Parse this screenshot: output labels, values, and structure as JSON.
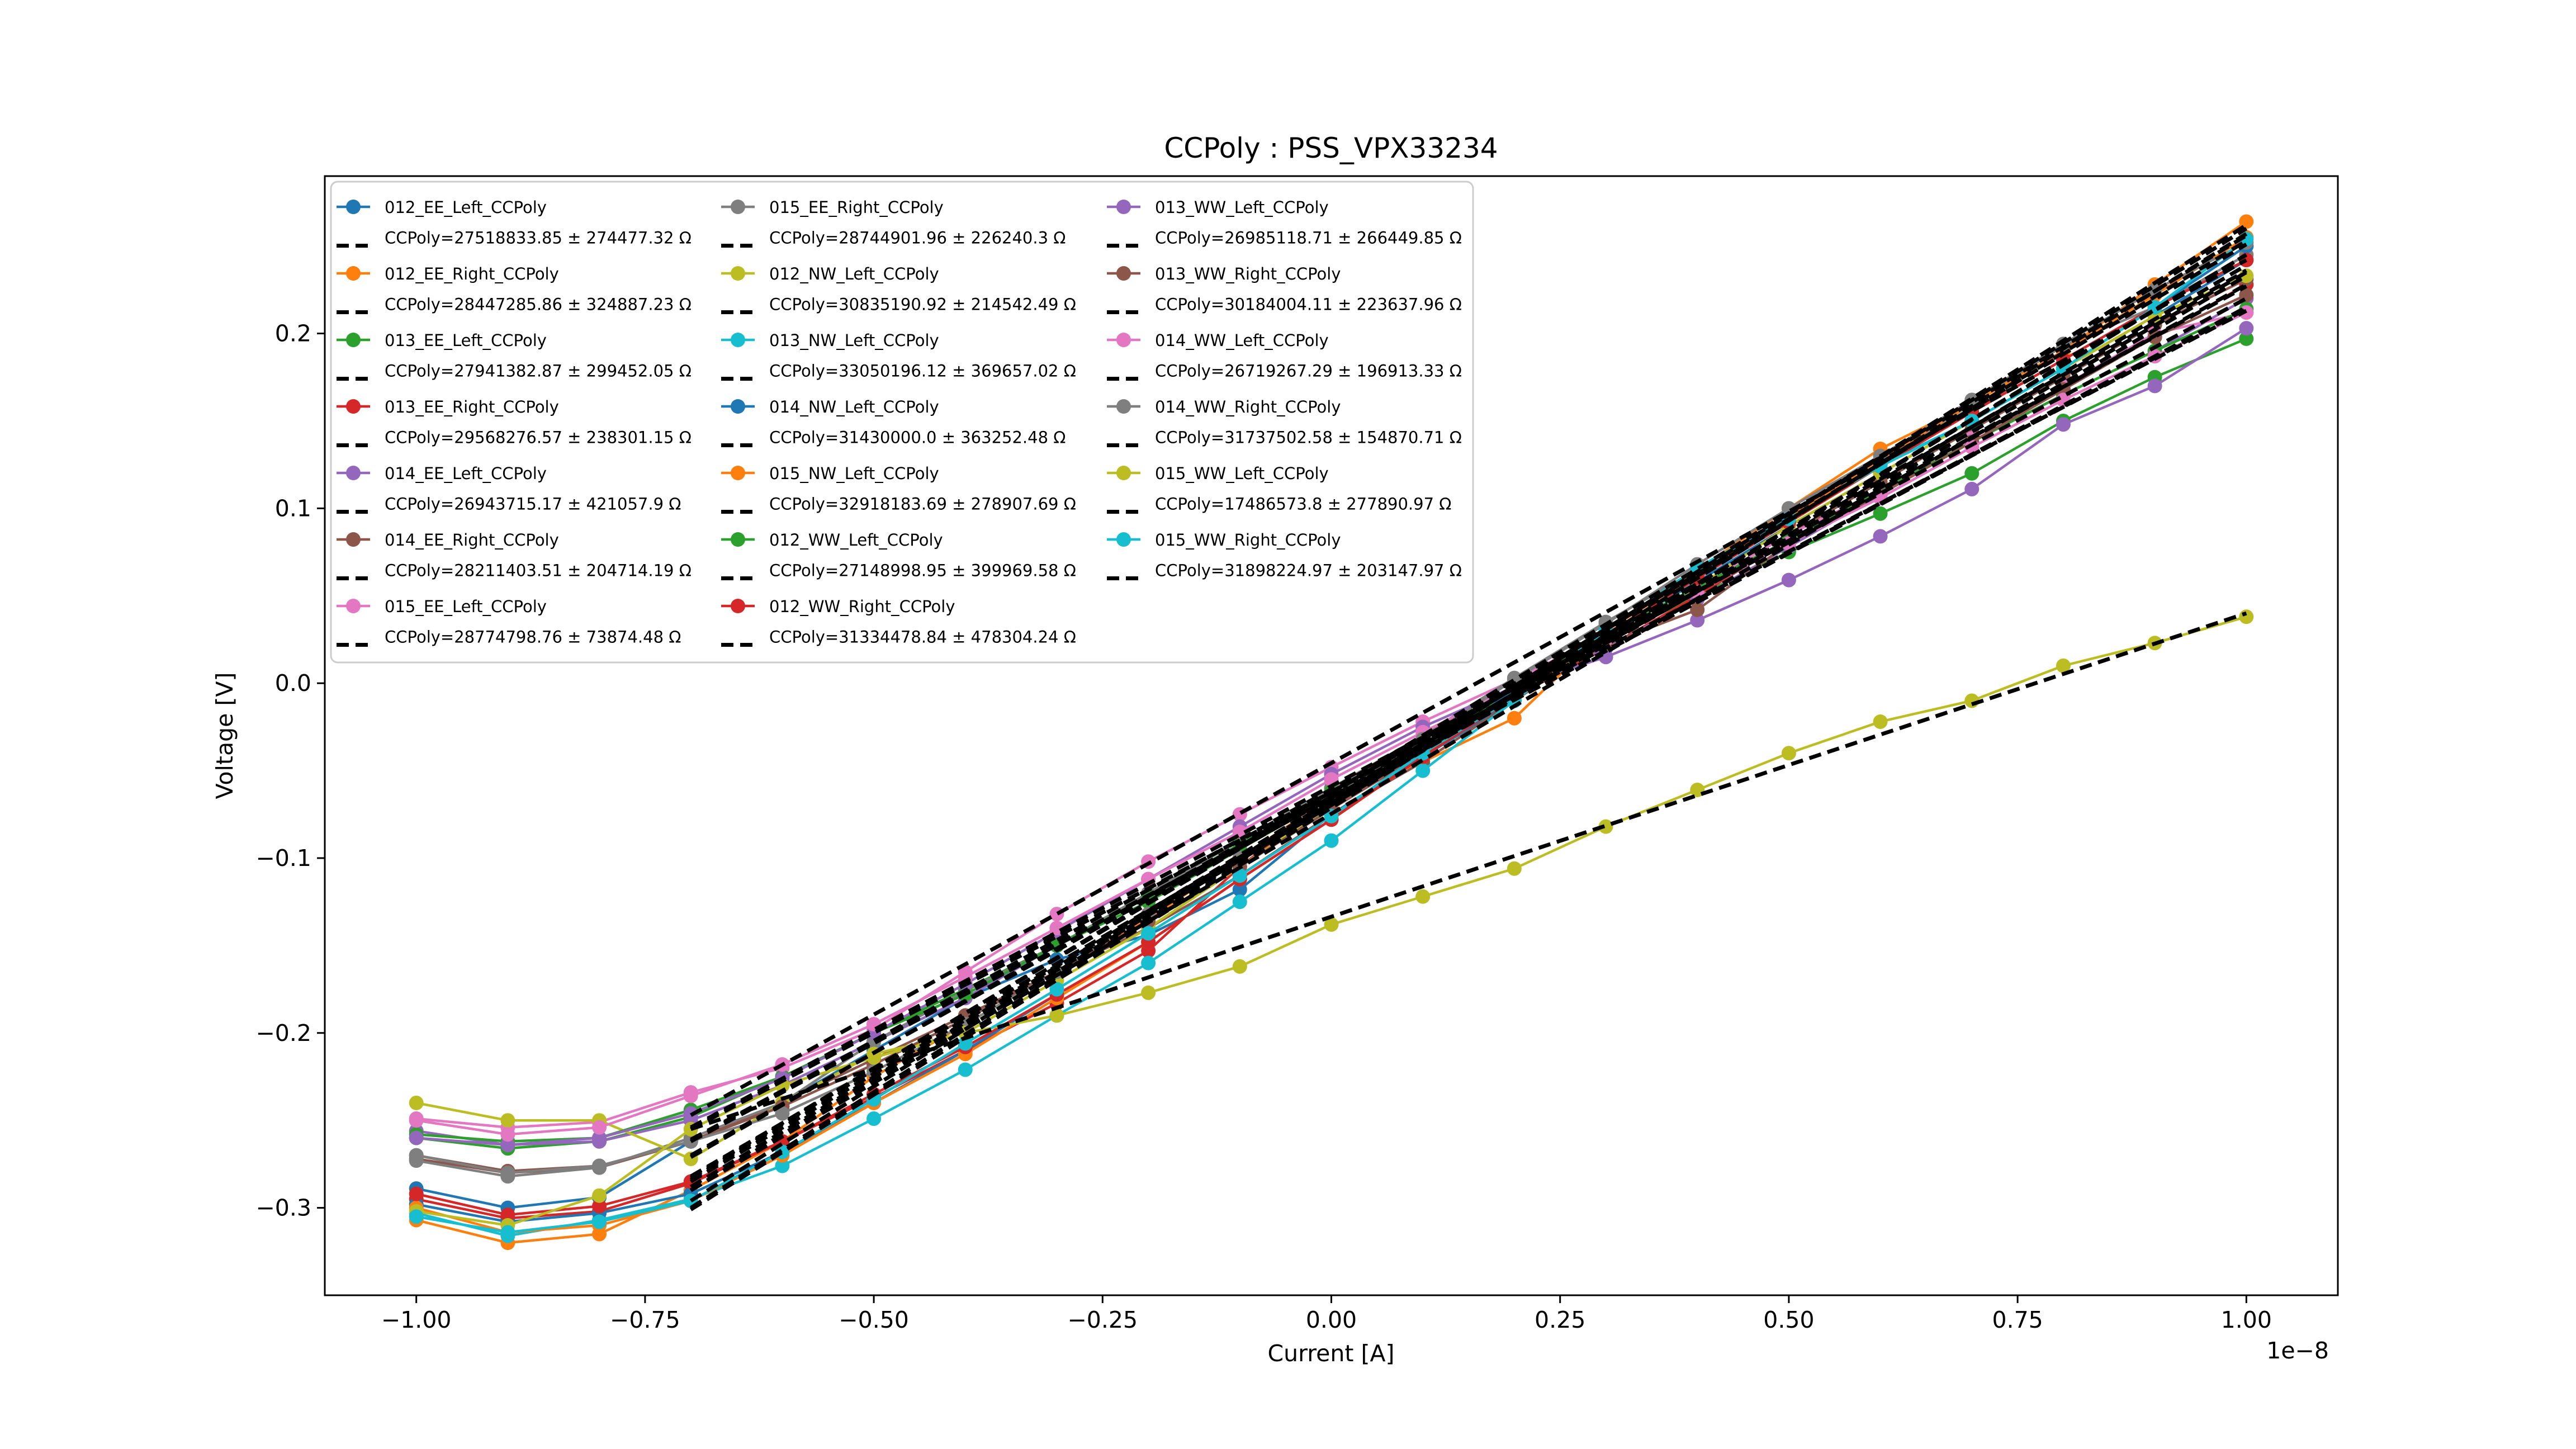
{
  "chart_data": {
    "type": "line",
    "title": "CCPoly : PSS_VPX33234",
    "xlabel": "Current [A]",
    "ylabel": "Voltage [V]",
    "x_offset_label": "1e−8",
    "xlim": [
      -1.1,
      1.1
    ],
    "ylim": [
      -0.35,
      0.29
    ],
    "x_ticks": [
      -1.0,
      -0.75,
      -0.5,
      -0.25,
      0.0,
      0.25,
      0.5,
      0.75,
      1.0
    ],
    "x_tick_labels": [
      "−1.00",
      "−0.75",
      "−0.50",
      "−0.25",
      "0.00",
      "0.25",
      "0.50",
      "0.75",
      "1.00"
    ],
    "y_ticks": [
      -0.3,
      -0.2,
      -0.1,
      0.0,
      0.1,
      0.2
    ],
    "y_tick_labels": [
      "−0.3",
      "−0.2",
      "−0.1",
      "0.0",
      "0.1",
      "0.2"
    ],
    "grid": false,
    "legend_position": "top-left",
    "x": [
      -1.0,
      -0.9,
      -0.8,
      -0.7,
      -0.6,
      -0.5,
      -0.4,
      -0.3,
      -0.2,
      -0.1,
      0.0,
      0.1,
      0.2,
      0.3,
      0.4,
      0.5,
      0.6,
      0.7,
      0.8,
      0.9,
      1.0
    ],
    "fit_x_range": [
      -0.7,
      1.0
    ],
    "series": [
      {
        "name": "012_EE_Left_CCPoly",
        "color": "#1f77b4",
        "fit_label": "CCPoly=27518833.85 ± 274477.32 Ω",
        "fit_end": [
          -0.283,
          0.251
        ],
        "values": [
          -0.289,
          -0.3,
          -0.294,
          -0.262,
          -0.24,
          -0.21,
          -0.18,
          -0.158,
          -0.144,
          -0.118,
          -0.075,
          -0.042,
          -0.01,
          0.028,
          0.058,
          0.09,
          0.12,
          0.15,
          0.18,
          0.21,
          0.242
        ]
      },
      {
        "name": "012_EE_Right_CCPoly",
        "color": "#ff7f0e",
        "fit_label": "CCPoly=28447285.86 ± 324887.23 Ω",
        "fit_end": [
          -0.301,
          0.257
        ],
        "values": [
          -0.307,
          -0.32,
          -0.315,
          -0.29,
          -0.262,
          -0.225,
          -0.195,
          -0.165,
          -0.135,
          -0.1,
          -0.065,
          -0.045,
          -0.02,
          0.03,
          0.065,
          0.1,
          0.134,
          0.16,
          0.19,
          0.228,
          0.264
        ]
      },
      {
        "name": "013_EE_Left_CCPoly",
        "color": "#2ca02c",
        "fit_label": "CCPoly=27941382.87 ± 299452.05 Ω",
        "fit_end": [
          -0.262,
          0.215
        ],
        "values": [
          -0.26,
          -0.266,
          -0.262,
          -0.248,
          -0.225,
          -0.2,
          -0.175,
          -0.15,
          -0.125,
          -0.095,
          -0.065,
          -0.035,
          -0.005,
          0.025,
          0.05,
          0.075,
          0.097,
          0.12,
          0.15,
          0.175,
          0.197
        ]
      },
      {
        "name": "013_EE_Right_CCPoly",
        "color": "#d62728",
        "fit_label": "CCPoly=29568276.57 ± 238301.15 Ω",
        "fit_end": [
          -0.29,
          0.233
        ],
        "values": [
          -0.295,
          -0.306,
          -0.302,
          -0.286,
          -0.262,
          -0.237,
          -0.21,
          -0.183,
          -0.153,
          -0.105,
          -0.065,
          -0.04,
          -0.008,
          0.02,
          0.05,
          0.082,
          0.11,
          0.138,
          0.168,
          0.198,
          0.228
        ]
      },
      {
        "name": "014_EE_Left_CCPoly",
        "color": "#9467bd",
        "fit_label": "CCPoly=26943715.17 ± 421057.9 Ω",
        "fit_end": [
          -0.27,
          0.228
        ],
        "values": [
          -0.256,
          -0.264,
          -0.262,
          -0.25,
          -0.23,
          -0.205,
          -0.18,
          -0.15,
          -0.12,
          -0.09,
          -0.06,
          -0.03,
          -0.002,
          0.02,
          0.048,
          0.078,
          0.108,
          0.138,
          0.165,
          0.19,
          0.22
        ]
      },
      {
        "name": "014_EE_Right_CCPoly",
        "color": "#8c564b",
        "fit_label": "CCPoly=28211403.51 ± 204714.19 Ω",
        "fit_end": [
          -0.271,
          0.236
        ],
        "values": [
          -0.272,
          -0.28,
          -0.277,
          -0.262,
          -0.24,
          -0.215,
          -0.19,
          -0.165,
          -0.14,
          -0.11,
          -0.075,
          -0.045,
          -0.01,
          0.025,
          0.055,
          0.085,
          0.115,
          0.145,
          0.175,
          0.205,
          0.231
        ]
      },
      {
        "name": "015_EE_Left_CCPoly",
        "color": "#e377c2",
        "fit_label": "CCPoly=28774798.76 ± 73874.48 Ω",
        "fit_end": [
          -0.247,
          0.242
        ],
        "values": [
          -0.249,
          -0.254,
          -0.251,
          -0.234,
          -0.22,
          -0.198,
          -0.165,
          -0.132,
          -0.102,
          -0.075,
          -0.048,
          -0.022,
          0.002,
          0.028,
          0.055,
          0.085,
          0.11,
          0.14,
          0.17,
          0.2,
          0.212
        ]
      },
      {
        "name": "015_EE_Right_CCPoly",
        "color": "#7f7f7f",
        "fit_label": "CCPoly=28744901.96 ± 226240.3 Ω",
        "fit_end": [
          -0.262,
          0.227
        ],
        "values": [
          -0.273,
          -0.282,
          -0.277,
          -0.26,
          -0.24,
          -0.205,
          -0.176,
          -0.15,
          -0.12,
          -0.09,
          -0.06,
          -0.03,
          0.003,
          0.035,
          0.065,
          0.095,
          0.125,
          0.16,
          0.193,
          0.215,
          0.245
        ]
      },
      {
        "name": "012_NW_Left_CCPoly",
        "color": "#bcbd22",
        "fit_label": "CCPoly=30835190.92 ± 214542.49 Ω",
        "fit_end": [
          -0.285,
          0.239
        ],
        "values": [
          -0.24,
          -0.25,
          -0.25,
          -0.272,
          -0.24,
          -0.212,
          -0.2,
          -0.17,
          -0.14,
          -0.105,
          -0.07,
          -0.04,
          -0.005,
          0.025,
          0.055,
          0.09,
          0.12,
          0.15,
          0.18,
          0.21,
          0.233
        ]
      },
      {
        "name": "013_NW_Left_CCPoly",
        "color": "#17becf",
        "fit_label": "CCPoly=33050196.12 ± 369657.02 Ω",
        "fit_end": [
          -0.3,
          0.262
        ],
        "values": [
          -0.303,
          -0.316,
          -0.307,
          -0.295,
          -0.276,
          -0.249,
          -0.221,
          -0.19,
          -0.16,
          -0.125,
          -0.09,
          -0.05,
          -0.01,
          0.03,
          0.066,
          0.095,
          0.125,
          0.15,
          0.18,
          0.215,
          0.25
        ]
      },
      {
        "name": "014_NW_Left_CCPoly",
        "color": "#1f77b4",
        "fit_label": "CCPoly=31430000.0 ± 363252.48 Ω",
        "fit_end": [
          -0.29,
          0.245
        ],
        "values": [
          -0.298,
          -0.308,
          -0.303,
          -0.292,
          -0.268,
          -0.24,
          -0.21,
          -0.178,
          -0.148,
          -0.112,
          -0.078,
          -0.04,
          -0.004,
          0.03,
          0.062,
          0.094,
          0.125,
          0.155,
          0.185,
          0.215,
          0.25
        ]
      },
      {
        "name": "015_NW_Left_CCPoly",
        "color": "#ff7f0e",
        "fit_label": "CCPoly=32918183.69 ± 278907.69 Ω",
        "fit_end": [
          -0.296,
          0.26
        ],
        "values": [
          -0.3,
          -0.314,
          -0.31,
          -0.296,
          -0.27,
          -0.24,
          -0.212,
          -0.18,
          -0.148,
          -0.112,
          -0.078,
          -0.042,
          -0.005,
          0.03,
          0.062,
          0.095,
          0.128,
          0.16,
          0.19,
          0.222,
          0.255
        ]
      },
      {
        "name": "012_WW_Left_CCPoly",
        "color": "#2ca02c",
        "fit_label": "CCPoly=27148998.95 ± 399969.58 Ω",
        "fit_end": [
          -0.254,
          0.22
        ],
        "values": [
          -0.258,
          -0.262,
          -0.26,
          -0.244,
          -0.225,
          -0.2,
          -0.178,
          -0.15,
          -0.122,
          -0.092,
          -0.062,
          -0.032,
          -0.002,
          0.028,
          0.055,
          0.082,
          0.11,
          0.138,
          0.165,
          0.19,
          0.214
        ]
      },
      {
        "name": "012_WW_Right_CCPoly",
        "color": "#d62728",
        "fit_label": "CCPoly=31334478.84 ± 478304.24 Ω",
        "fit_end": [
          -0.288,
          0.245
        ],
        "values": [
          -0.292,
          -0.304,
          -0.299,
          -0.285,
          -0.262,
          -0.235,
          -0.208,
          -0.178,
          -0.148,
          -0.112,
          -0.078,
          -0.042,
          -0.008,
          0.028,
          0.06,
          0.092,
          0.124,
          0.155,
          0.185,
          0.215,
          0.242
        ]
      },
      {
        "name": "013_WW_Left_CCPoly",
        "color": "#9467bd",
        "fit_label": "CCPoly=26985118.71 ± 266449.85 Ω",
        "fit_end": [
          -0.261,
          0.214
        ],
        "values": [
          -0.26,
          -0.264,
          -0.26,
          -0.246,
          -0.226,
          -0.2,
          -0.172,
          -0.142,
          -0.112,
          -0.082,
          -0.052,
          -0.025,
          -0.002,
          0.015,
          0.036,
          0.059,
          0.084,
          0.111,
          0.148,
          0.17,
          0.203
        ]
      },
      {
        "name": "013_WW_Right_CCPoly",
        "color": "#8c564b",
        "fit_label": "CCPoly=30184004.11 ± 223637.96 Ω",
        "fit_end": [
          -0.282,
          0.235
        ],
        "values": [
          -0.27,
          -0.279,
          -0.276,
          -0.262,
          -0.242,
          -0.218,
          -0.192,
          -0.165,
          -0.136,
          -0.105,
          -0.072,
          -0.04,
          -0.008,
          0.022,
          0.042,
          0.08,
          0.108,
          0.138,
          0.168,
          0.198,
          0.222
        ]
      },
      {
        "name": "014_WW_Left_CCPoly",
        "color": "#e377c2",
        "fit_label": "CCPoly=26719267.29 ± 196913.33 Ω",
        "fit_end": [
          -0.255,
          0.213
        ],
        "values": [
          -0.25,
          -0.258,
          -0.254,
          -0.236,
          -0.218,
          -0.195,
          -0.168,
          -0.14,
          -0.112,
          -0.085,
          -0.055,
          -0.028,
          -0.002,
          0.025,
          0.052,
          0.08,
          0.106,
          0.135,
          0.162,
          0.187,
          0.212
        ]
      },
      {
        "name": "014_WW_Right_CCPoly",
        "color": "#7f7f7f",
        "fit_label": "CCPoly=31737502.58 ± 154870.71 Ω",
        "fit_end": [
          -0.284,
          0.256
        ],
        "values": [
          -0.27,
          -0.28,
          -0.276,
          -0.262,
          -0.246,
          -0.222,
          -0.195,
          -0.165,
          -0.132,
          -0.1,
          -0.066,
          -0.032,
          0.002,
          0.034,
          0.068,
          0.1,
          0.13,
          0.162,
          0.194,
          0.225,
          0.252
        ]
      },
      {
        "name": "015_WW_Left_CCPoly",
        "color": "#bcbd22",
        "fit_label": "CCPoly=17486573.8 ± 277890.97 Ω",
        "fit_end": [
          -0.255,
          0.04
        ],
        "values": [
          -0.302,
          -0.31,
          -0.293,
          -0.255,
          -0.23,
          -0.214,
          -0.2,
          -0.19,
          -0.177,
          -0.162,
          -0.138,
          -0.122,
          -0.106,
          -0.082,
          -0.061,
          -0.04,
          -0.022,
          -0.01,
          0.01,
          0.023,
          0.038
        ]
      },
      {
        "name": "015_WW_Right_CCPoly",
        "color": "#17becf",
        "fit_label": "CCPoly=31898224.97 ± 203147.97 Ω",
        "fit_end": [
          -0.29,
          0.253
        ],
        "values": [
          -0.305,
          -0.314,
          -0.308,
          -0.296,
          -0.268,
          -0.238,
          -0.206,
          -0.175,
          -0.143,
          -0.11,
          -0.076,
          -0.04,
          -0.008,
          0.03,
          0.066,
          0.094,
          0.124,
          0.15,
          0.18,
          0.215,
          0.254
        ]
      }
    ]
  }
}
